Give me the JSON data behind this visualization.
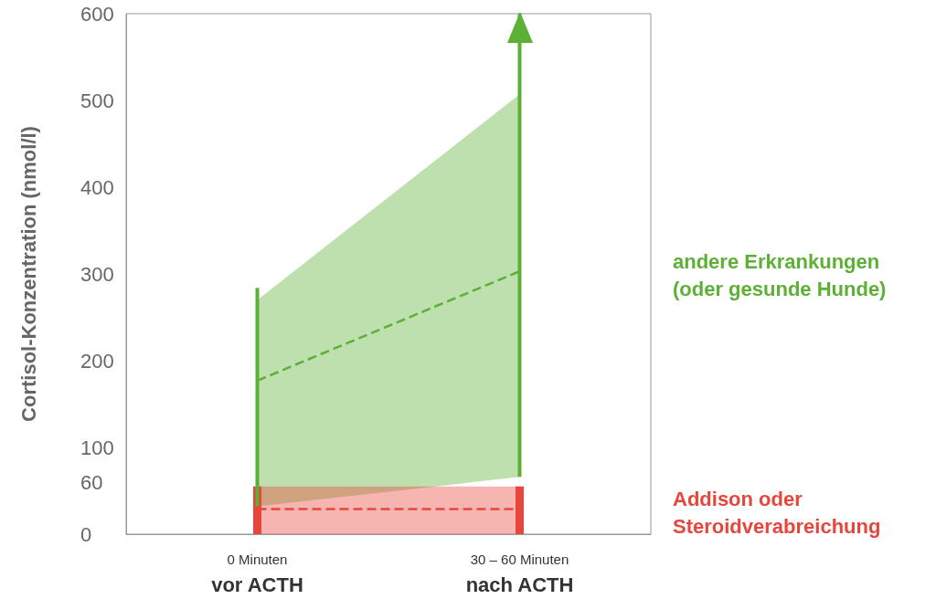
{
  "chart_data": {
    "type": "line",
    "ylabel": "Cortisol-Konzentration (nmol/l)",
    "categories": [
      "0 Minuten\nvor ACTH",
      "30 – 60 Minuten\nnach ACTH"
    ],
    "ylim": [
      0,
      600
    ],
    "yticks": [
      0,
      60,
      100,
      200,
      300,
      400,
      500,
      600
    ],
    "grid": false,
    "legend": false,
    "line_style": "dashed",
    "marker": "none",
    "series": [
      {
        "name": "andere Erkrankungen\n(oder gesunde Hunde)",
        "color": "#5cb035",
        "values": [
          177,
          303
        ],
        "lower": [
          32,
          66
        ],
        "upper": [
          270,
          507
        ],
        "errors": [
          [
            32,
            284
          ],
          [
            66,
            600
          ]
        ]
      },
      {
        "name": "Addison oder\nSteroidverabreichung",
        "color": "#e8453c",
        "values": [
          29,
          29
        ],
        "lower": [
          0,
          0
        ],
        "upper": [
          55,
          55
        ],
        "errors": [
          [
            0,
            55
          ],
          [
            0,
            55
          ]
        ]
      }
    ]
  }
}
